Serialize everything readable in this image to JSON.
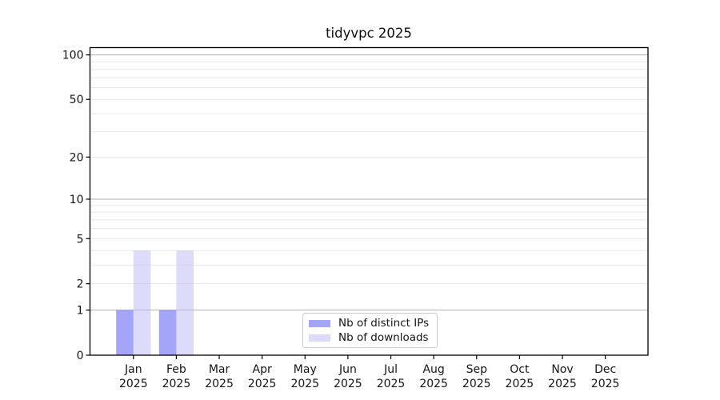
{
  "chart_data": {
    "type": "bar",
    "title": "tidyvpc 2025",
    "xlabel": "",
    "ylabel": "",
    "x_categories": [
      "Jan",
      "Feb",
      "Mar",
      "Apr",
      "May",
      "Jun",
      "Jul",
      "Aug",
      "Sep",
      "Oct",
      "Nov",
      "Dec"
    ],
    "x_year": "2025",
    "series": [
      {
        "name": "Nb of distinct IPs",
        "color": "#6e6ef2",
        "alpha": 0.62,
        "values": [
          1,
          1,
          0,
          0,
          0,
          0,
          0,
          0,
          0,
          0,
          0,
          0
        ]
      },
      {
        "name": "Nb of downloads",
        "color": "#babaf5",
        "alpha": 0.5,
        "values": [
          4,
          4,
          0,
          0,
          0,
          0,
          0,
          0,
          0,
          0,
          0,
          0
        ]
      }
    ],
    "yscale": "log1p",
    "ylim": [
      0,
      112
    ],
    "yticks": [
      0,
      1,
      2,
      5,
      10,
      20,
      50,
      100
    ],
    "grid": {
      "major_values": [
        1,
        10,
        100
      ],
      "minor_values": [
        2,
        3,
        4,
        5,
        6,
        7,
        8,
        9,
        20,
        30,
        40,
        50,
        60,
        70,
        80,
        90
      ],
      "major_color": "#b0b0b0",
      "minor_color": "#e9e9e9"
    },
    "legend": {
      "position": "lower center"
    }
  }
}
